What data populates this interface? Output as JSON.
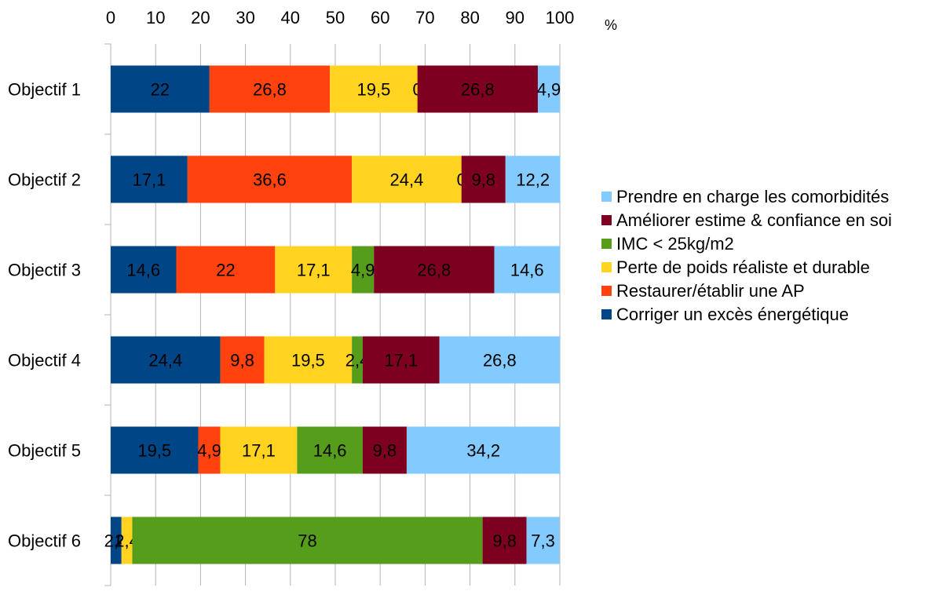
{
  "chart_data": {
    "type": "bar",
    "orientation": "horizontal",
    "stacked": true,
    "unit_label": "%",
    "xlim": [
      0,
      100
    ],
    "x_ticks": [
      0,
      10,
      20,
      30,
      40,
      50,
      60,
      70,
      80,
      90,
      100
    ],
    "x_axis_position": "top",
    "grid": true,
    "legend_position": "right",
    "categories": [
      "Objectif 1",
      "Objectif 2",
      "Objectif 3",
      "Objectif 4",
      "Objectif 5",
      "Objectif 6"
    ],
    "series": [
      {
        "name": "Corriger un excès énergétique",
        "color": "#004586",
        "values": [
          22,
          17.1,
          14.6,
          24.4,
          19.5,
          2.4
        ],
        "labels": [
          "22",
          "17,1",
          "14,6",
          "24,4",
          "19,5",
          "2,4"
        ]
      },
      {
        "name": "Restaurer/établir une AP",
        "color": "#FF420E",
        "values": [
          26.8,
          36.6,
          22,
          9.8,
          4.9,
          0
        ],
        "labels": [
          "26,8",
          "36,6",
          "22",
          "9,8",
          "4,9",
          "0"
        ]
      },
      {
        "name": "Perte de poids réaliste et durable",
        "color": "#FFD320",
        "values": [
          19.5,
          24.4,
          17.1,
          19.5,
          17.1,
          2.4
        ],
        "labels": [
          "19,5",
          "24,4",
          "17,1",
          "19,5",
          "17,1",
          "2,4"
        ]
      },
      {
        "name": "IMC < 25kg/m2",
        "color": "#579D1C",
        "values": [
          0,
          0,
          4.9,
          2.4,
          14.6,
          78
        ],
        "labels": [
          "0",
          "0",
          "4,9",
          "2,4",
          "14,6",
          "78"
        ]
      },
      {
        "name": "Améliorer estime & confiance en soi",
        "color": "#7E0021",
        "values": [
          26.8,
          9.8,
          26.8,
          17.1,
          9.8,
          9.8
        ],
        "labels": [
          "26,8",
          "9,8",
          "26,8",
          "17,1",
          "9,8",
          "9,8"
        ]
      },
      {
        "name": "Prendre en charge les comorbidités",
        "color": "#83CAFF",
        "values": [
          4.9,
          12.2,
          14.6,
          26.8,
          34.2,
          7.3
        ],
        "labels": [
          "4,9",
          "12,2",
          "14,6",
          "26,8",
          "34,2",
          "7,3"
        ]
      }
    ],
    "legend_order": [
      5,
      4,
      3,
      2,
      1,
      0
    ]
  }
}
